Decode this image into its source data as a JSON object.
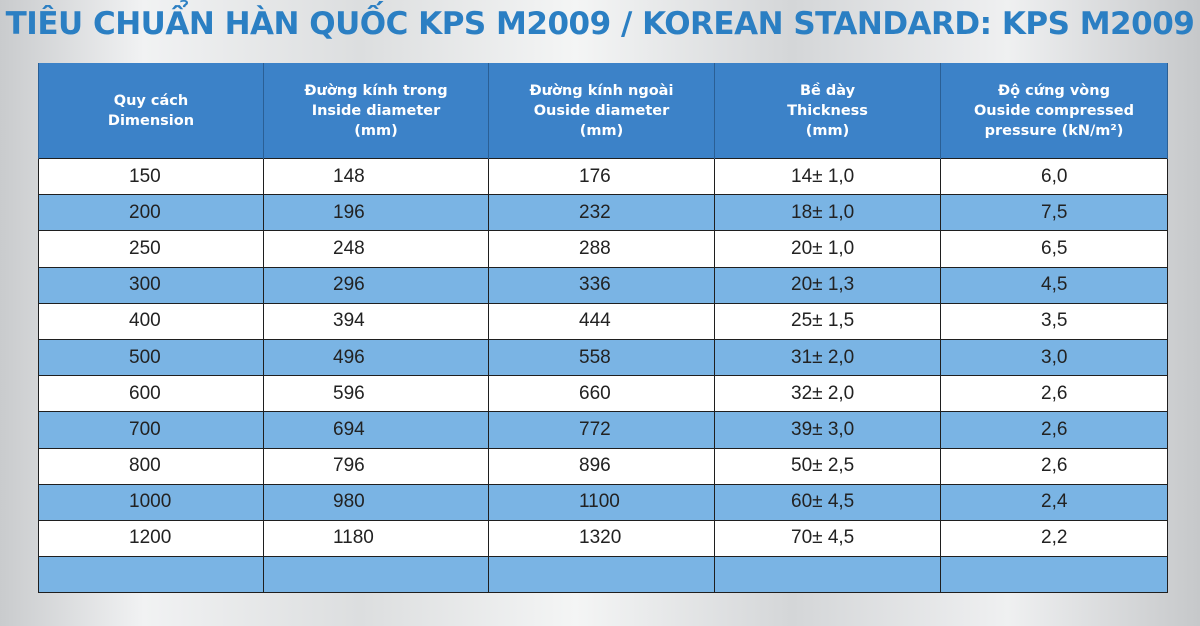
{
  "title": "TIÊU CHUẨN HÀN QUỐC KPS M2009 / KOREAN STANDARD: KPS M2009",
  "headers": [
    {
      "lines": [
        "Quy cách",
        "Dimension"
      ]
    },
    {
      "lines": [
        "Đường kính trong",
        "Inside diameter",
        "(mm)"
      ]
    },
    {
      "lines": [
        "Đường kính ngoài",
        "Ouside diameter",
        "(mm)"
      ]
    },
    {
      "lines": [
        "Bề dày",
        "Thickness",
        "(mm)"
      ]
    },
    {
      "lines": [
        "Độ cứng vòng",
        "Ouside compressed",
        "pressure  (kN/m²)"
      ]
    }
  ],
  "rows": [
    [
      "150",
      "148",
      "176",
      "14± 1,0",
      "6,0"
    ],
    [
      "200",
      "196",
      "232",
      "18± 1,0",
      "7,5"
    ],
    [
      "250",
      "248",
      "288",
      "20± 1,0",
      "6,5"
    ],
    [
      "300",
      "296",
      "336",
      "20± 1,3",
      "4,5"
    ],
    [
      "400",
      "394",
      "444",
      "25± 1,5",
      "3,5"
    ],
    [
      "500",
      "496",
      "558",
      "31± 2,0",
      "3,0"
    ],
    [
      "600",
      "596",
      "660",
      "32± 2,0",
      "2,6"
    ],
    [
      "700",
      "694",
      "772",
      "39± 3,0",
      "2,6"
    ],
    [
      "800",
      "796",
      "896",
      "50± 2,5",
      "2,6"
    ],
    [
      "1000",
      "980",
      "1100",
      "60± 4,5",
      "2,4"
    ],
    [
      "1200",
      "1180",
      "1320",
      "70± 4,5",
      "2,2"
    ]
  ],
  "colors": {
    "title": "#2b7fc3",
    "header_bg": "#3c82c8",
    "row_blue": "#7ab4e4",
    "row_white": "#ffffff"
  }
}
